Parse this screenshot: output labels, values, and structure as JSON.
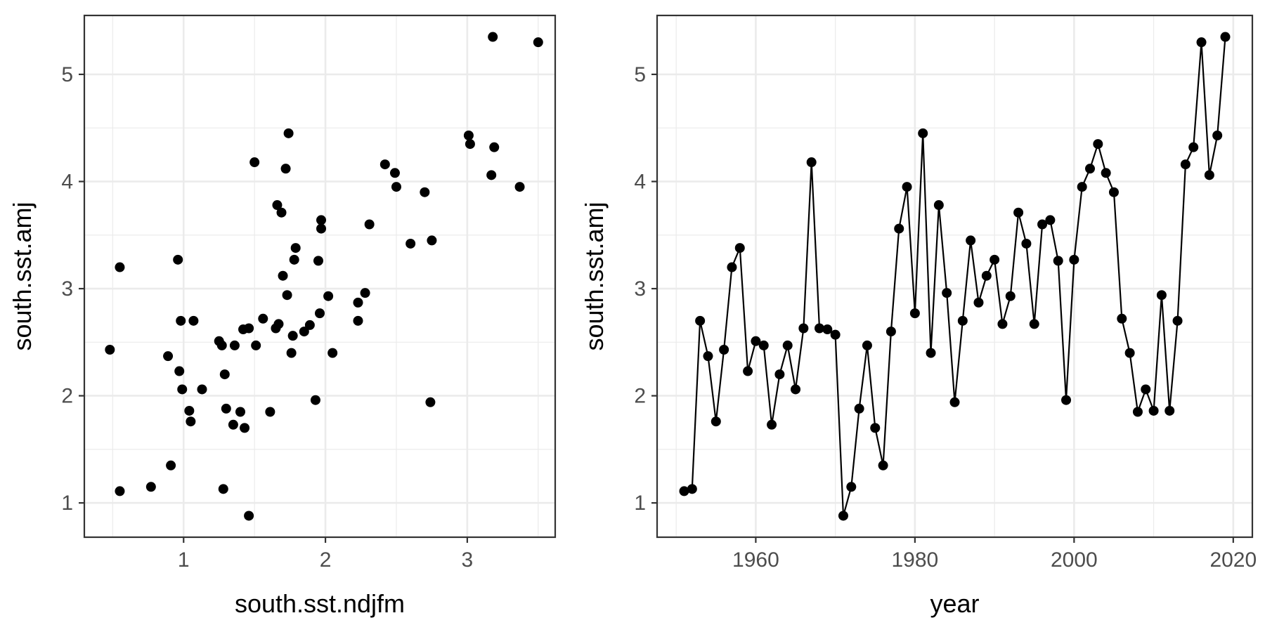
{
  "chart_data": [
    {
      "type": "scatter",
      "title": "",
      "xlabel": "south.sst.ndjfm",
      "ylabel": "south.sst.amj",
      "xlim": [
        0.3,
        3.62
      ],
      "ylim": [
        0.68,
        5.55
      ],
      "xticks": [
        1,
        2,
        3
      ],
      "yticks": [
        1,
        2,
        3,
        4,
        5
      ],
      "xminor": [
        0.5,
        1.5,
        2.5,
        3.5
      ],
      "yminor": [
        1.5,
        2.5,
        3.5,
        4.5
      ],
      "grid": true,
      "points": [
        [
          0.48,
          2.43
        ],
        [
          0.55,
          3.2
        ],
        [
          0.55,
          1.11
        ],
        [
          0.77,
          1.15
        ],
        [
          0.89,
          2.37
        ],
        [
          0.91,
          1.35
        ],
        [
          0.96,
          3.27
        ],
        [
          0.97,
          2.23
        ],
        [
          0.98,
          2.7
        ],
        [
          0.99,
          2.06
        ],
        [
          1.04,
          1.86
        ],
        [
          1.05,
          1.76
        ],
        [
          1.07,
          2.7
        ],
        [
          1.13,
          2.06
        ],
        [
          1.25,
          2.51
        ],
        [
          1.27,
          2.47
        ],
        [
          1.28,
          1.13
        ],
        [
          1.29,
          2.2
        ],
        [
          1.3,
          1.88
        ],
        [
          1.35,
          1.73
        ],
        [
          1.36,
          2.47
        ],
        [
          1.4,
          1.85
        ],
        [
          1.42,
          2.62
        ],
        [
          1.43,
          1.7
        ],
        [
          1.46,
          2.63
        ],
        [
          1.46,
          0.88
        ],
        [
          1.5,
          4.18
        ],
        [
          1.51,
          2.47
        ],
        [
          1.56,
          2.72
        ],
        [
          1.61,
          1.85
        ],
        [
          1.65,
          2.63
        ],
        [
          1.66,
          3.78
        ],
        [
          1.67,
          2.67
        ],
        [
          1.69,
          3.71
        ],
        [
          1.7,
          3.12
        ],
        [
          1.72,
          4.12
        ],
        [
          1.73,
          2.94
        ],
        [
          1.74,
          4.45
        ],
        [
          1.76,
          2.4
        ],
        [
          1.77,
          2.56
        ],
        [
          1.78,
          3.27
        ],
        [
          1.79,
          3.38
        ],
        [
          1.85,
          2.6
        ],
        [
          1.89,
          2.66
        ],
        [
          1.93,
          1.96
        ],
        [
          1.95,
          3.26
        ],
        [
          1.96,
          2.77
        ],
        [
          1.97,
          3.56
        ],
        [
          1.97,
          3.64
        ],
        [
          2.02,
          2.93
        ],
        [
          2.05,
          2.4
        ],
        [
          2.23,
          2.87
        ],
        [
          2.23,
          2.7
        ],
        [
          2.28,
          2.96
        ],
        [
          2.31,
          3.6
        ],
        [
          2.42,
          4.16
        ],
        [
          2.49,
          4.08
        ],
        [
          2.5,
          3.95
        ],
        [
          2.6,
          3.42
        ],
        [
          2.7,
          3.9
        ],
        [
          2.74,
          1.94
        ],
        [
          2.75,
          3.45
        ],
        [
          3.01,
          4.43
        ],
        [
          3.02,
          4.35
        ],
        [
          3.17,
          4.06
        ],
        [
          3.18,
          5.35
        ],
        [
          3.19,
          4.32
        ],
        [
          3.37,
          3.95
        ],
        [
          3.5,
          5.3
        ]
      ]
    },
    {
      "type": "line",
      "title": "",
      "xlabel": "year",
      "ylabel": "south.sst.amj",
      "xlim": [
        1947.6,
        2022.4
      ],
      "ylim": [
        0.68,
        5.55
      ],
      "xticks": [
        1960,
        1980,
        2000,
        2020
      ],
      "yticks": [
        1,
        2,
        3,
        4,
        5
      ],
      "xminor": [
        1950,
        1970,
        1990,
        2010
      ],
      "yminor": [
        1.5,
        2.5,
        3.5,
        4.5
      ],
      "grid": true,
      "x": [
        1951,
        1952,
        1953,
        1954,
        1955,
        1956,
        1957,
        1958,
        1959,
        1960,
        1961,
        1962,
        1963,
        1964,
        1965,
        1966,
        1967,
        1968,
        1969,
        1970,
        1971,
        1972,
        1973,
        1974,
        1975,
        1976,
        1977,
        1978,
        1979,
        1980,
        1981,
        1982,
        1983,
        1984,
        1985,
        1986,
        1987,
        1988,
        1989,
        1990,
        1991,
        1992,
        1993,
        1994,
        1995,
        1996,
        1997,
        1998,
        1999,
        2000,
        2001,
        2002,
        2003,
        2004,
        2005,
        2006,
        2007,
        2008,
        2009,
        2010,
        2011,
        2012,
        2013,
        2014,
        2015,
        2016,
        2017,
        2018,
        2019
      ],
      "y": [
        1.11,
        1.13,
        2.7,
        2.37,
        1.76,
        2.43,
        3.2,
        3.38,
        2.23,
        2.51,
        2.47,
        1.73,
        2.2,
        2.47,
        2.06,
        2.63,
        4.18,
        2.63,
        2.62,
        2.57,
        0.88,
        1.15,
        1.88,
        2.47,
        1.7,
        1.35,
        2.6,
        3.56,
        3.95,
        2.77,
        4.45,
        2.4,
        3.78,
        2.96,
        1.94,
        2.7,
        3.45,
        2.87,
        3.12,
        3.27,
        2.67,
        2.93,
        3.71,
        3.42,
        2.67,
        3.6,
        3.64,
        3.26,
        1.96,
        3.27,
        3.95,
        4.12,
        4.35,
        4.08,
        3.9,
        2.72,
        2.4,
        1.85,
        2.06,
        1.86,
        2.94,
        1.86,
        2.7,
        4.16,
        4.32,
        5.3,
        4.06,
        4.43,
        5.35
      ]
    }
  ]
}
